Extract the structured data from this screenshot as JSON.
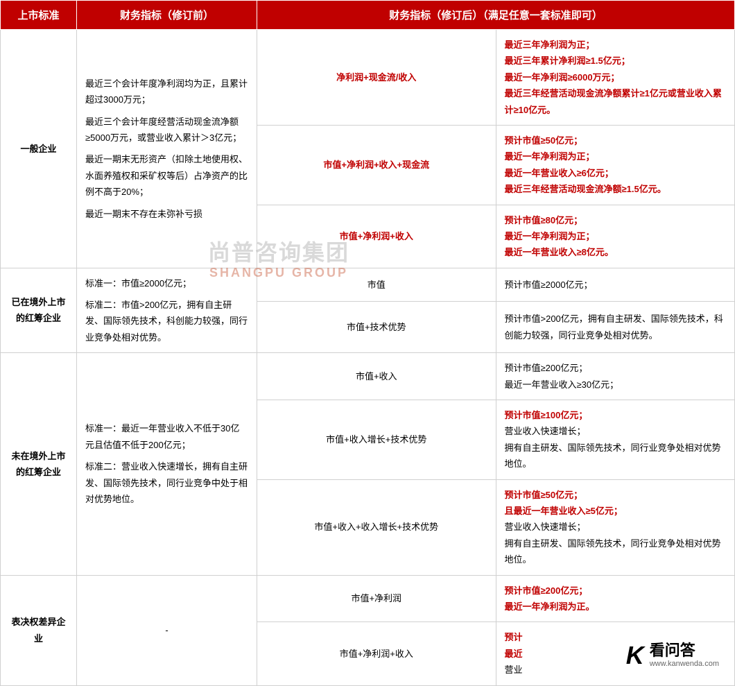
{
  "colors": {
    "header_bg": "#c00000",
    "header_text": "#ffffff",
    "border": "#d0d0d0",
    "red": "#c00000",
    "black": "#000000"
  },
  "table": {
    "headers": {
      "col1": "上市标准",
      "col2": "财务指标（修订前）",
      "col3": "财务指标（修订后）（满足任意一套标准即可）"
    },
    "rows": [
      {
        "category": "一般企业",
        "category_rowspan": 3,
        "before": [
          "最近三个会计年度净利润均为正，且累计超过3000万元；",
          "最近三个会计年度经营活动现金流净额≥5000万元，或营业收入累计＞3亿元；",
          "最近一期末无形资产（扣除土地使用权、水面养殖权和采矿权等后）占净资产的比例不高于20%；",
          "最近一期末不存在未弥补亏损"
        ],
        "before_rowspan": 3,
        "after_type": "净利润+现金流/收入",
        "after_type_style": "red-bold",
        "after_detail": [
          {
            "text": "最近三年净利润为正；",
            "style": "red-bold"
          },
          {
            "text": "最近三年累计净利润≥1.5亿元；",
            "style": "red-bold"
          },
          {
            "text": "最近一年净利润≥6000万元；",
            "style": "red-bold"
          },
          {
            "text": "最近三年经营活动现金流净额累计≥1亿元或营业收入累计≥10亿元。",
            "style": "red-bold"
          }
        ]
      },
      {
        "after_type": "市值+净利润+收入+现金流",
        "after_type_style": "red-bold",
        "after_detail": [
          {
            "text": "预计市值≥50亿元；",
            "style": "red-bold"
          },
          {
            "text": "最近一年净利润为正；",
            "style": "red-bold"
          },
          {
            "text": "最近一年营业收入≥6亿元；",
            "style": "red-bold"
          },
          {
            "text": "最近三年经营活动现金流净额≥1.5亿元。",
            "style": "red-bold"
          }
        ]
      },
      {
        "after_type": "市值+净利润+收入",
        "after_type_style": "red-bold",
        "after_detail": [
          {
            "text": "预计市值≥80亿元；",
            "style": "red-bold"
          },
          {
            "text": "最近一年净利润为正；",
            "style": "red-bold"
          },
          {
            "text": "最近一年营业收入≥8亿元。",
            "style": "red-bold"
          }
        ]
      },
      {
        "category": "已在境外上市的红筹企业",
        "category_rowspan": 2,
        "before": [
          "标准一：市值≥2000亿元；",
          "标准二：市值>200亿元，拥有自主研发、国际领先技术，科创能力较强，同行业竞争处相对优势。"
        ],
        "before_rowspan": 2,
        "after_type": "市值",
        "after_type_style": "black-text",
        "after_detail": [
          {
            "text": "预计市值≥2000亿元；",
            "style": "black-text"
          }
        ]
      },
      {
        "after_type": "市值+技术优势",
        "after_type_style": "black-text",
        "after_detail": [
          {
            "text": "预计市值>200亿元，拥有自主研发、国际领先技术，科创能力较强，同行业竞争处相对优势。",
            "style": "black-text"
          }
        ]
      },
      {
        "category": "未在境外上市的红筹企业",
        "category_rowspan": 3,
        "before": [
          "标准一：最近一年营业收入不低于30亿元且估值不低于200亿元；",
          "标准二：营业收入快速增长，拥有自主研发、国际领先技术，同行业竞争中处于相对优势地位。"
        ],
        "before_rowspan": 3,
        "after_type": "市值+收入",
        "after_type_style": "black-text",
        "after_detail": [
          {
            "text": "预计市值≥200亿元；",
            "style": "black-text"
          },
          {
            "text": "最近一年营业收入≥30亿元；",
            "style": "black-text"
          }
        ]
      },
      {
        "after_type": "市值+收入增长+技术优势",
        "after_type_style": "black-text",
        "after_detail": [
          {
            "text": "预计市值≥100亿元；",
            "style": "red-bold"
          },
          {
            "text": "营业收入快速增长；",
            "style": "black-text"
          },
          {
            "text": "拥有自主研发、国际领先技术，同行业竞争处相对优势地位。",
            "style": "black-text"
          }
        ]
      },
      {
        "after_type": "市值+收入+收入增长+技术优势",
        "after_type_style": "black-text",
        "after_detail": [
          {
            "text": "预计市值≥50亿元；",
            "style": "red-bold"
          },
          {
            "text": "且最近一年营业收入≥5亿元；",
            "style": "red-bold"
          },
          {
            "text": "营业收入快速增长；",
            "style": "black-text"
          },
          {
            "text": "拥有自主研发、国际领先技术，同行业竞争处相对优势地位。",
            "style": "black-text"
          }
        ]
      },
      {
        "category": "表决权差异企业",
        "category_rowspan": 2,
        "before": [
          "-"
        ],
        "before_rowspan": 2,
        "before_center": true,
        "after_type": "市值+净利润",
        "after_type_style": "black-text",
        "after_detail": [
          {
            "text": "预计市值≥200亿元；",
            "style": "red-bold"
          },
          {
            "text": "最近一年净利润为正。",
            "style": "red-bold"
          }
        ]
      },
      {
        "after_type": "市值+净利润+收入",
        "after_type_style": "black-text",
        "after_detail": [
          {
            "text": "预计",
            "style": "red-bold"
          },
          {
            "text": "最近",
            "style": "red-bold"
          },
          {
            "text": "营业",
            "style": "black-text"
          }
        ]
      }
    ]
  },
  "watermark": {
    "cn": "尚普咨询集团",
    "en": "SHANGPU GROUP"
  },
  "logo": {
    "k": "K",
    "cn": "看问答",
    "url": "www.kanwenda.com"
  }
}
